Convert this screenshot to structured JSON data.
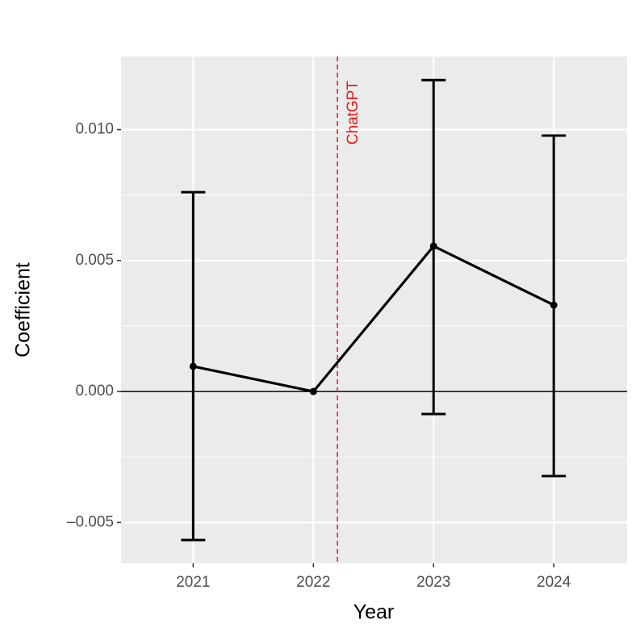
{
  "chart_data": {
    "type": "line",
    "x_label": "Year",
    "y_label": "Coefficient",
    "x": [
      2021,
      2022,
      2023,
      2024
    ],
    "series": [
      {
        "color": "#000000",
        "values": [
          0.00096,
          0,
          0.00555,
          0.0033
        ],
        "lower": [
          -0.00567,
          null,
          -0.00086,
          -0.00323
        ],
        "upper": [
          0.00761,
          null,
          0.01189,
          0.00977
        ]
      }
    ],
    "xlim": [
      2020.4,
      2024.61
    ],
    "ylim": [
      -0.00656,
      0.01279
    ],
    "xticks": [
      2021,
      2022,
      2023,
      2024
    ],
    "yticks": [
      {
        "value": -0.005,
        "label": "–0.005"
      },
      {
        "value": 0,
        "label": "0.000"
      },
      {
        "value": 0.005,
        "label": "0.005"
      },
      {
        "value": 0.01,
        "label": "0.010"
      }
    ],
    "yminor": [
      -0.0025,
      0.0025,
      0.0075
    ],
    "grid": true,
    "hline": 0,
    "vline": {
      "x": 2022.2,
      "label": "ChatGPT",
      "color": "#e41a1c"
    }
  }
}
